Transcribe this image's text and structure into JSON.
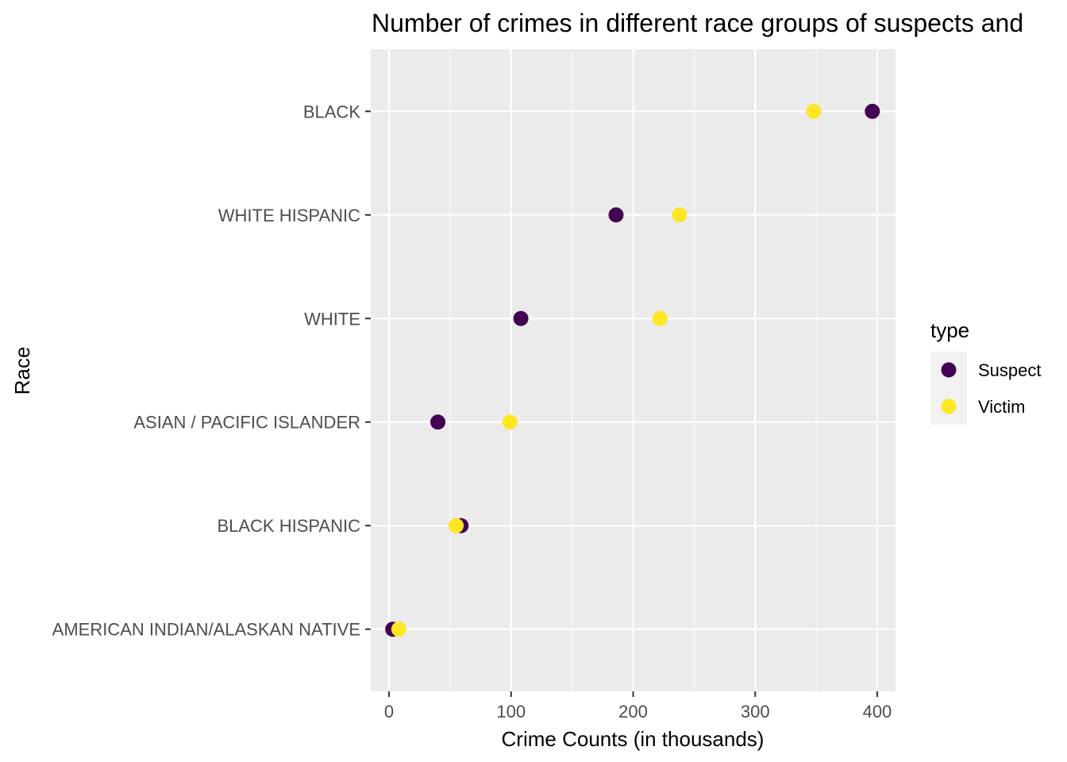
{
  "chart_data": {
    "type": "scatter",
    "title": "Number of crimes in different race groups of suspects and",
    "xlabel": "Crime Counts (in thousands)",
    "ylabel": "Race",
    "xlim": [
      -15,
      415
    ],
    "x_ticks": [
      0,
      100,
      200,
      300,
      400
    ],
    "x_tick_labels": [
      "0",
      "100",
      "200",
      "300",
      "400"
    ],
    "categories": [
      "BLACK",
      "WHITE HISPANIC",
      "WHITE",
      "ASIAN / PACIFIC ISLANDER",
      "BLACK HISPANIC",
      "AMERICAN INDIAN/ALASKAN NATIVE"
    ],
    "series": [
      {
        "name": "Suspect",
        "color": "#440154",
        "values": [
          396,
          186,
          108,
          40,
          59,
          3
        ]
      },
      {
        "name": "Victim",
        "color": "#FDE725",
        "values": [
          348,
          238,
          222,
          99,
          55,
          8
        ]
      }
    ],
    "grid": true,
    "legend": {
      "title": "type",
      "placement": "right"
    }
  }
}
